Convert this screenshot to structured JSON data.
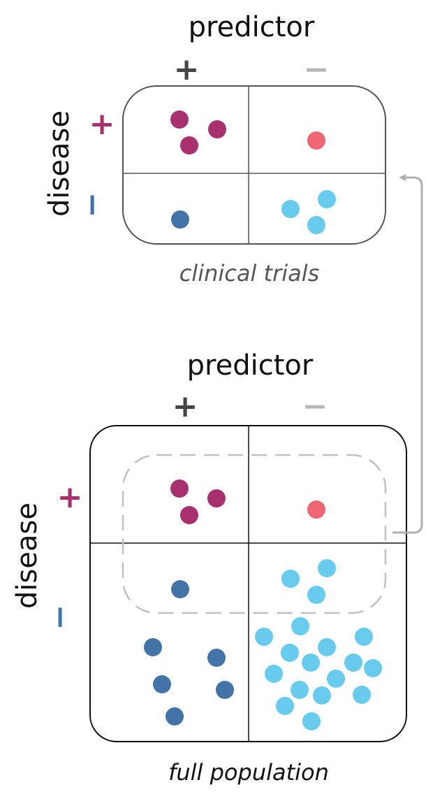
{
  "top_panel": {
    "title": "predictor",
    "col_signs": [
      "+",
      "−"
    ],
    "row_label": "disease",
    "row_signs": [
      "+",
      "−"
    ],
    "caption": "clinical trials"
  },
  "bottom_panel": {
    "title": "predictor",
    "col_signs": [
      "+",
      "−"
    ],
    "row_label": "disease",
    "row_signs": [
      "+",
      "−"
    ],
    "caption": "full population"
  },
  "colors": {
    "true_positive": "#a8306f",
    "false_positive": "#ee6573",
    "false_negative": "#4274a8",
    "true_negative": "#66cbec",
    "plus_col": "#444444",
    "minus_col": "#b8b8b8",
    "plus_row": "#a8306f",
    "minus_row": "#4274a8",
    "dashed": "#c0c0c0",
    "arrow": "#b0b0b0",
    "caption_top": "#555555",
    "caption_bottom": "#111111"
  }
}
